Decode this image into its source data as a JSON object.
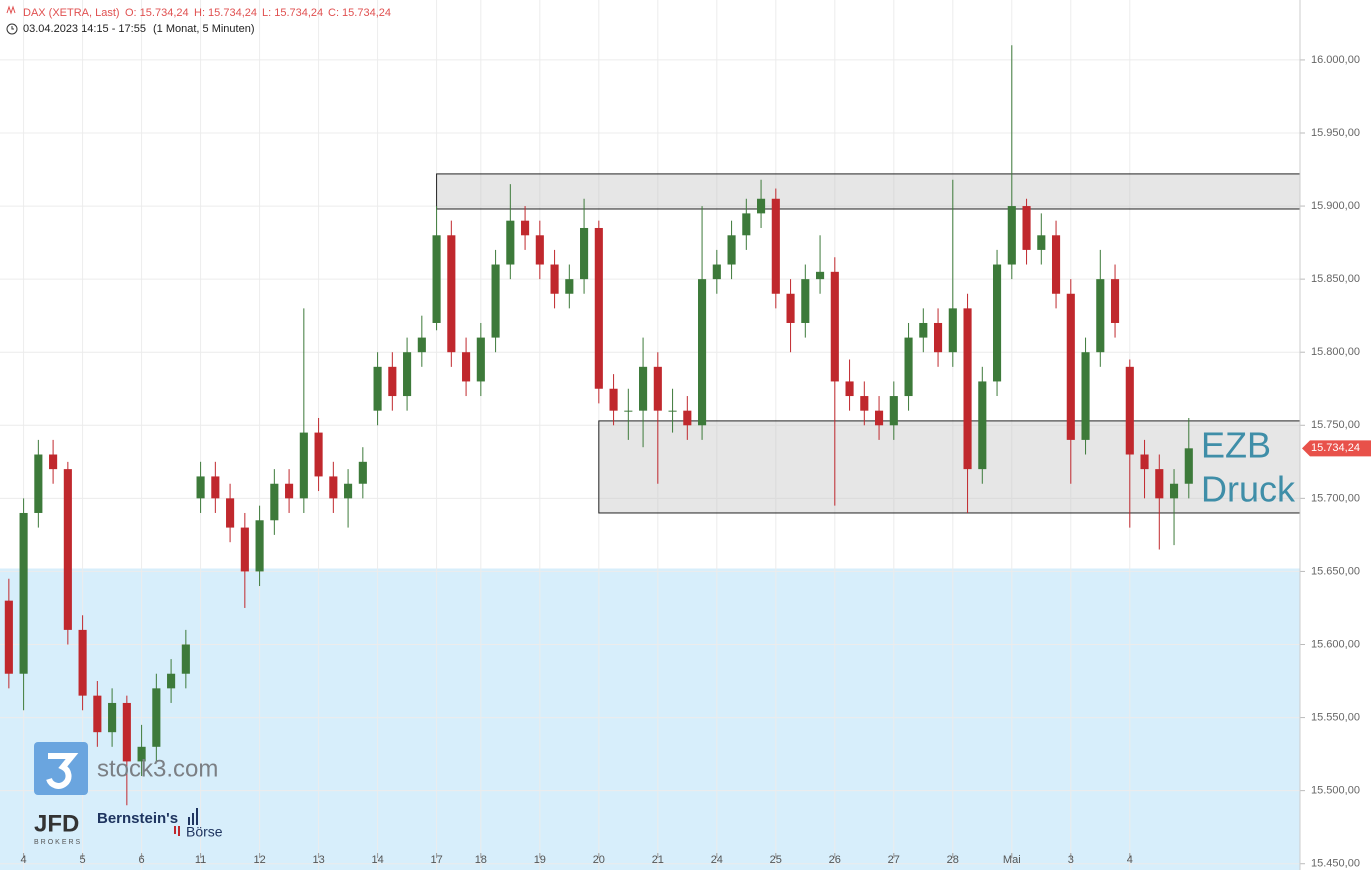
{
  "chart_data": {
    "type": "candlestick",
    "header": {
      "instrument": "DAX (XETRA, Last)",
      "open": "O: 15.734,24",
      "high": "H: 15.734,24",
      "low": "L: 15.734,24",
      "close": "C: 15.734,24",
      "period": "03.04.2023 14:15 - 17:55",
      "interval": "(1 Monat, 5 Minuten)"
    },
    "x": [
      -1,
      0,
      1,
      2,
      3,
      4,
      5,
      6,
      7,
      8,
      9,
      10,
      11,
      12,
      13,
      14,
      15,
      16,
      17,
      18,
      19,
      20,
      21,
      22,
      23,
      24,
      25,
      26,
      27,
      28,
      29,
      30,
      31,
      32,
      33,
      34,
      35,
      36,
      37,
      38,
      39,
      40,
      41,
      42,
      43,
      44,
      45,
      46,
      47,
      48,
      49,
      50,
      51,
      52,
      53,
      54,
      55,
      56,
      57,
      58,
      59,
      60,
      61,
      62,
      63,
      64,
      65,
      66,
      67,
      68,
      69,
      70,
      71,
      72,
      73,
      74,
      75,
      76,
      77,
      78,
      79
    ],
    "open": [
      15630,
      15580,
      15690,
      15730,
      15720,
      15610,
      15565,
      15540,
      15560,
      15520,
      15530,
      15570,
      15580,
      15700,
      15715,
      15700,
      15680,
      15650,
      15685,
      15710,
      15700,
      15745,
      15715,
      15700,
      15710,
      15760,
      15790,
      15770,
      15800,
      15820,
      15880,
      15800,
      15780,
      15810,
      15860,
      15890,
      15880,
      15860,
      15840,
      15850,
      15885,
      15775,
      15760,
      15760,
      15790,
      15760,
      15760,
      15750,
      15850,
      15860,
      15880,
      15895,
      15905,
      15840,
      15820,
      15850,
      15855,
      15780,
      15770,
      15760,
      15750,
      15770,
      15810,
      15820,
      15800,
      15830,
      15720,
      15780,
      15860,
      15900,
      15870,
      15880,
      15840,
      15740,
      15800,
      15850,
      15790,
      15730,
      15720,
      15700,
      15710
    ],
    "high": [
      15645,
      15700,
      15740,
      15740,
      15725,
      15620,
      15575,
      15570,
      15565,
      15545,
      15580,
      15590,
      15610,
      15725,
      15725,
      15710,
      15690,
      15695,
      15720,
      15720,
      15830,
      15755,
      15725,
      15720,
      15735,
      15800,
      15800,
      15810,
      15825,
      15900,
      15890,
      15810,
      15820,
      15870,
      15915,
      15900,
      15890,
      15870,
      15860,
      15905,
      15890,
      15785,
      15775,
      15810,
      15800,
      15775,
      15770,
      15900,
      15870,
      15890,
      15905,
      15918,
      15912,
      15850,
      15860,
      15880,
      15865,
      15795,
      15780,
      15770,
      15780,
      15820,
      15830,
      15830,
      15918,
      15840,
      15790,
      15870,
      16010,
      15905,
      15895,
      15890,
      15850,
      15810,
      15870,
      15860,
      15795,
      15740,
      15730,
      15720,
      15755
    ],
    "low": [
      15570,
      15555,
      15680,
      15710,
      15600,
      15555,
      15530,
      15530,
      15490,
      15510,
      15520,
      15560,
      15570,
      15690,
      15690,
      15670,
      15625,
      15640,
      15675,
      15690,
      15690,
      15705,
      15690,
      15680,
      15700,
      15750,
      15760,
      15760,
      15790,
      15815,
      15790,
      15770,
      15770,
      15800,
      15850,
      15870,
      15850,
      15830,
      15830,
      15840,
      15765,
      15750,
      15740,
      15735,
      15710,
      15745,
      15740,
      15740,
      15840,
      15850,
      15870,
      15885,
      15830,
      15800,
      15810,
      15840,
      15695,
      15760,
      15750,
      15740,
      15740,
      15760,
      15800,
      15790,
      15790,
      15690,
      15710,
      15770,
      15850,
      15860,
      15860,
      15830,
      15710,
      15730,
      15790,
      15810,
      15680,
      15700,
      15665,
      15668,
      15700
    ],
    "close": [
      15580,
      15690,
      15730,
      15720,
      15610,
      15565,
      15540,
      15560,
      15520,
      15530,
      15570,
      15580,
      15600,
      15715,
      15700,
      15680,
      15650,
      15685,
      15710,
      15700,
      15745,
      15715,
      15700,
      15710,
      15725,
      15790,
      15770,
      15800,
      15810,
      15880,
      15800,
      15780,
      15810,
      15860,
      15890,
      15880,
      15860,
      15840,
      15850,
      15885,
      15775,
      15760,
      15760,
      15790,
      15760,
      15760,
      15750,
      15850,
      15860,
      15880,
      15895,
      15905,
      15840,
      15820,
      15850,
      15855,
      15780,
      15770,
      15760,
      15750,
      15770,
      15810,
      15820,
      15800,
      15830,
      15720,
      15780,
      15860,
      15900,
      15870,
      15880,
      15840,
      15740,
      15800,
      15850,
      15820,
      15730,
      15720,
      15700,
      15710,
      15734.24
    ],
    "up_color": "#3d7a3a",
    "down_color": "#c0282d",
    "xlim": [
      -1.6,
      86.54
    ],
    "xticks": [
      {
        "value": 0,
        "label": "4"
      },
      {
        "value": 4,
        "label": "5"
      },
      {
        "value": 8,
        "label": "6"
      },
      {
        "value": 12,
        "label": "11"
      },
      {
        "value": 16,
        "label": "12"
      },
      {
        "value": 20,
        "label": "13"
      },
      {
        "value": 24,
        "label": "14"
      },
      {
        "value": 28,
        "label": "17"
      },
      {
        "value": 31,
        "label": "18"
      },
      {
        "value": 35,
        "label": "19"
      },
      {
        "value": 39,
        "label": "20"
      },
      {
        "value": 43,
        "label": "21"
      },
      {
        "value": 47,
        "label": "24"
      },
      {
        "value": 51,
        "label": "25"
      },
      {
        "value": 55,
        "label": "26"
      },
      {
        "value": 59,
        "label": "27"
      },
      {
        "value": 63,
        "label": "28"
      },
      {
        "value": 67,
        "label": "Mai"
      },
      {
        "value": 71,
        "label": "3"
      },
      {
        "value": 75,
        "label": "4"
      }
    ],
    "ylim": [
      15445.7,
      16041
    ],
    "yticks": [
      {
        "value": 15450,
        "label": "15.450,00"
      },
      {
        "value": 15500,
        "label": "15.500,00"
      },
      {
        "value": 15550,
        "label": "15.550,00"
      },
      {
        "value": 15600,
        "label": "15.600,00"
      },
      {
        "value": 15650,
        "label": "15.650,00"
      },
      {
        "value": 15700,
        "label": "15.700,00"
      },
      {
        "value": 15750,
        "label": "15.750,00"
      },
      {
        "value": 15800,
        "label": "15.800,00"
      },
      {
        "value": 15850,
        "label": "15.850,00"
      },
      {
        "value": 15900,
        "label": "15.900,00"
      },
      {
        "value": 15950,
        "label": "15.950,00"
      },
      {
        "value": 16000,
        "label": "16.000,00"
      }
    ],
    "grid": true,
    "last_price": {
      "value": 15734.24,
      "label": "15.734,24",
      "color": "#e8514a"
    },
    "shaded_below": {
      "value": 15652,
      "color": "#d7eefb"
    },
    "zones": [
      {
        "ylim": [
          15898,
          15922
        ],
        "x_start": 28
      },
      {
        "ylim": [
          15690,
          15753
        ],
        "x_start": 39,
        "label": [
          "EZB",
          "Druck"
        ]
      }
    ],
    "logos": {
      "stock3": "stock3.com",
      "jfd": "JFD",
      "jfd_sub": "BROKERS",
      "bernstein": "Bernstein's",
      "boerse": "Börse"
    }
  }
}
